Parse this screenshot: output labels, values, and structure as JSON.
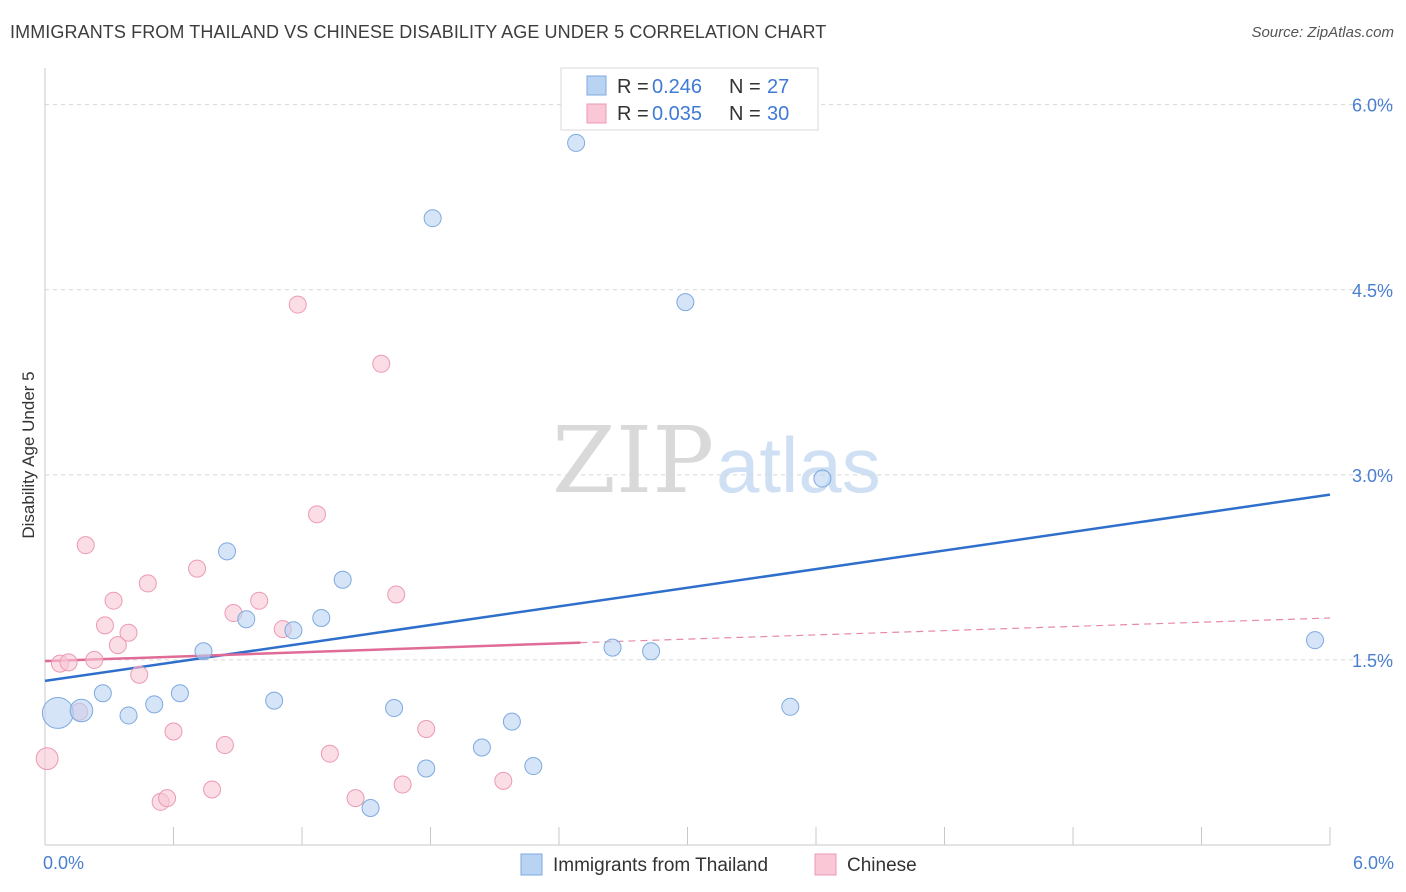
{
  "header": {
    "title": "IMMIGRANTS FROM THAILAND VS CHINESE DISABILITY AGE UNDER 5 CORRELATION CHART",
    "source": "Source: ZipAtlas.com"
  },
  "watermark": {
    "zip": "ZIP",
    "atlas": "atlas"
  },
  "colors": {
    "thailand_fill": "#b9d3f2",
    "thailand_stroke": "#7ea9e0",
    "thailand_line": "#2f6fcc",
    "chinese_fill": "#f9c7d6",
    "chinese_stroke": "#ec9ab4",
    "chinese_line": "#e06b97",
    "axis_label": "#4a7fd0",
    "grid": "#d8d8d8"
  },
  "legend": {
    "rows": [
      {
        "r_label": "R = ",
        "r_value": "0.246",
        "n_label": "N = ",
        "n_value": "27"
      },
      {
        "r_label": "R = ",
        "r_value": "0.035",
        "n_label": "N = ",
        "n_value": "30"
      }
    ]
  },
  "chart_data": {
    "type": "scatter",
    "title": "IMMIGRANTS FROM THAILAND VS CHINESE DISABILITY AGE UNDER 5 CORRELATION CHART",
    "xlabel": "",
    "ylabel": "Disability Age Under 5",
    "xlim": [
      0,
      6
    ],
    "ylim": [
      0,
      6.2
    ],
    "x_tick_labels": [
      "0.0%",
      "6.0%"
    ],
    "y_ticks": [
      1.5,
      3.0,
      4.5,
      6.0
    ],
    "y_tick_labels": [
      "1.5%",
      "3.0%",
      "4.5%",
      "6.0%"
    ],
    "grid": true,
    "legend_position": "top-center",
    "series": [
      {
        "name": "Immigrants from Thailand",
        "r": 0.246,
        "n": 27,
        "trend": {
          "x": [
            0,
            6
          ],
          "y": [
            1.33,
            2.84
          ]
        },
        "points": [
          {
            "x": 0.06,
            "y": 1.07,
            "size": 3
          },
          {
            "x": 0.17,
            "y": 1.09,
            "size": 1.6
          },
          {
            "x": 0.27,
            "y": 1.23,
            "size": 1
          },
          {
            "x": 0.39,
            "y": 1.05,
            "size": 1
          },
          {
            "x": 0.51,
            "y": 1.14,
            "size": 1
          },
          {
            "x": 0.63,
            "y": 1.23,
            "size": 1
          },
          {
            "x": 0.74,
            "y": 1.57,
            "size": 1
          },
          {
            "x": 0.85,
            "y": 2.38,
            "size": 1
          },
          {
            "x": 0.94,
            "y": 1.83,
            "size": 1
          },
          {
            "x": 1.07,
            "y": 1.17,
            "size": 1
          },
          {
            "x": 1.16,
            "y": 1.74,
            "size": 1
          },
          {
            "x": 1.29,
            "y": 1.84,
            "size": 1
          },
          {
            "x": 1.39,
            "y": 2.15,
            "size": 1
          },
          {
            "x": 1.52,
            "y": 0.3,
            "size": 1
          },
          {
            "x": 1.63,
            "y": 1.11,
            "size": 1
          },
          {
            "x": 1.78,
            "y": 0.62,
            "size": 1
          },
          {
            "x": 1.81,
            "y": 5.08,
            "size": 1
          },
          {
            "x": 2.04,
            "y": 0.79,
            "size": 1
          },
          {
            "x": 2.18,
            "y": 1.0,
            "size": 1
          },
          {
            "x": 2.28,
            "y": 0.64,
            "size": 1
          },
          {
            "x": 2.48,
            "y": 5.69,
            "size": 1
          },
          {
            "x": 2.65,
            "y": 1.6,
            "size": 1
          },
          {
            "x": 2.83,
            "y": 1.57,
            "size": 1
          },
          {
            "x": 2.99,
            "y": 4.4,
            "size": 1
          },
          {
            "x": 3.48,
            "y": 1.12,
            "size": 1
          },
          {
            "x": 3.63,
            "y": 2.97,
            "size": 1
          },
          {
            "x": 5.93,
            "y": 1.66,
            "size": 1
          }
        ]
      },
      {
        "name": "Chinese",
        "r": 0.035,
        "n": 30,
        "trend": {
          "x": [
            0,
            2.5
          ],
          "y": [
            1.49,
            1.64
          ]
        },
        "trend_extension": {
          "x": [
            2.5,
            6
          ],
          "y": [
            1.64,
            1.84
          ]
        },
        "points": [
          {
            "x": 0.01,
            "y": 0.7,
            "size": 1.5
          },
          {
            "x": 0.07,
            "y": 1.47,
            "size": 1
          },
          {
            "x": 0.11,
            "y": 1.48,
            "size": 1
          },
          {
            "x": 0.16,
            "y": 1.08,
            "size": 1
          },
          {
            "x": 0.19,
            "y": 2.43,
            "size": 1
          },
          {
            "x": 0.23,
            "y": 1.5,
            "size": 1
          },
          {
            "x": 0.28,
            "y": 1.78,
            "size": 1
          },
          {
            "x": 0.32,
            "y": 1.98,
            "size": 1
          },
          {
            "x": 0.34,
            "y": 1.62,
            "size": 1
          },
          {
            "x": 0.39,
            "y": 1.72,
            "size": 1
          },
          {
            "x": 0.44,
            "y": 1.38,
            "size": 1
          },
          {
            "x": 0.48,
            "y": 2.12,
            "size": 1
          },
          {
            "x": 0.54,
            "y": 0.35,
            "size": 1
          },
          {
            "x": 0.57,
            "y": 0.38,
            "size": 1
          },
          {
            "x": 0.6,
            "y": 0.92,
            "size": 1
          },
          {
            "x": 0.71,
            "y": 2.24,
            "size": 1
          },
          {
            "x": 0.78,
            "y": 0.45,
            "size": 1
          },
          {
            "x": 0.84,
            "y": 0.81,
            "size": 1
          },
          {
            "x": 0.88,
            "y": 1.88,
            "size": 1
          },
          {
            "x": 1.0,
            "y": 1.98,
            "size": 1
          },
          {
            "x": 1.11,
            "y": 1.75,
            "size": 1
          },
          {
            "x": 1.18,
            "y": 4.38,
            "size": 1
          },
          {
            "x": 1.27,
            "y": 2.68,
            "size": 1
          },
          {
            "x": 1.33,
            "y": 0.74,
            "size": 1
          },
          {
            "x": 1.45,
            "y": 0.38,
            "size": 1
          },
          {
            "x": 1.57,
            "y": 3.9,
            "size": 1
          },
          {
            "x": 1.64,
            "y": 2.03,
            "size": 1
          },
          {
            "x": 1.67,
            "y": 0.49,
            "size": 1
          },
          {
            "x": 1.78,
            "y": 0.94,
            "size": 1
          },
          {
            "x": 2.14,
            "y": 0.52,
            "size": 1
          }
        ]
      }
    ]
  }
}
